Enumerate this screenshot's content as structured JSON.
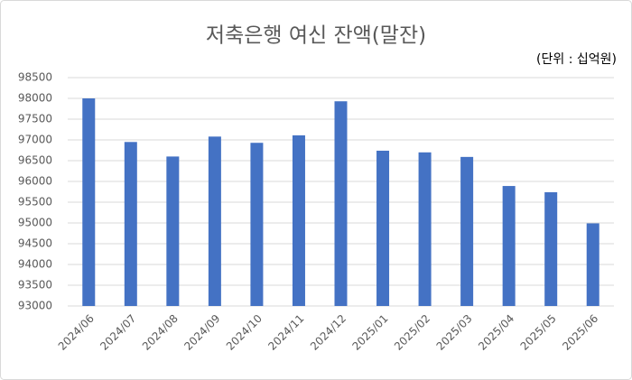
{
  "chart_data": {
    "type": "bar",
    "title": "저축은행 여신 잔액(말잔)",
    "annotation": "(단위 : 십억원)",
    "categories": [
      "2024/06",
      "2024/07",
      "2024/08",
      "2024/09",
      "2024/10",
      "2024/11",
      "2024/12",
      "2025/01",
      "2025/02",
      "2025/03",
      "2025/04",
      "2025/05",
      "2025/06"
    ],
    "values": [
      98000,
      96950,
      96600,
      97080,
      96930,
      97110,
      97930,
      96740,
      96700,
      96590,
      95890,
      95740,
      94990
    ],
    "color": "#4472c4",
    "ylim": [
      93000,
      98500
    ],
    "yticks": [
      93000,
      93500,
      94000,
      94500,
      95000,
      95500,
      96000,
      96500,
      97000,
      97500,
      98000,
      98500
    ],
    "grid": true
  }
}
